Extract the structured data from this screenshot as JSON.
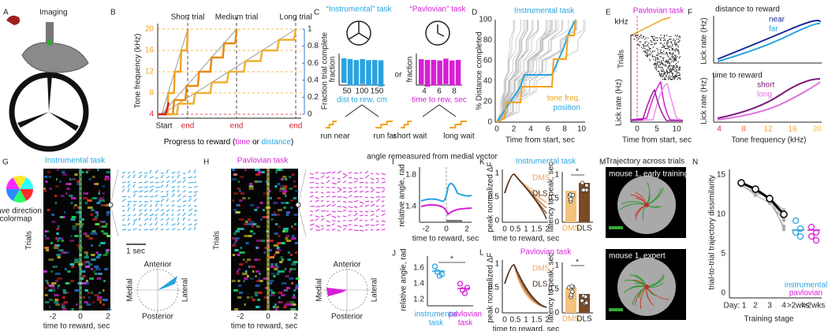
{
  "A": {
    "label": "A",
    "imaging": "Imaging"
  },
  "B": {
    "label": "B",
    "ylabel": "Tone frequency (kHz)",
    "yticks": [
      "4",
      "8",
      "12",
      "16",
      "20"
    ],
    "y2label": "Fraction trial complete",
    "y2ticks": [
      "0",
      "0.2",
      "0.4",
      "0.6",
      "0.8",
      "1"
    ],
    "trials": [
      "Short trial",
      "Medium trial",
      "Long trial"
    ],
    "start": "Start",
    "ends": [
      "end",
      "end",
      "end"
    ],
    "xlabel": [
      "Progress to reward (",
      "time",
      " or ",
      "distance",
      ")"
    ]
  },
  "C": {
    "label": "C",
    "instrumental_title": "“Instrumental” task",
    "or": "or",
    "pavlovian_title": "“Pavlovian” task",
    "ylabel": [
      "fraction",
      "fraction"
    ],
    "inst_ticks": [
      "50",
      "100",
      "150"
    ],
    "inst_xlabel": "dist to rew, cm",
    "pav_ticks": [
      "4",
      "6",
      "8"
    ],
    "pav_xlabel": "time to rew, sec",
    "outcomes": [
      "run near",
      "run far",
      "short wait",
      "long wait"
    ]
  },
  "D": {
    "label": "D",
    "title": "Instrumental task",
    "ylabel": "% Distance completed",
    "yticks": [
      "0",
      "20",
      "40",
      "60",
      "80",
      "100"
    ],
    "xticks": [
      "0",
      "2",
      "4",
      "6",
      "8",
      "10"
    ],
    "xlabel": "Time from start, sec",
    "legend": [
      "tone freq.",
      "position"
    ]
  },
  "E": {
    "label": "E",
    "title": "Pavlovian task",
    "khz": "kHz",
    "trials": "Trials",
    "ylabel": "Lick rate (Hz)",
    "xticks": [
      "0",
      "5",
      "10"
    ],
    "xlabel": "Time from start, sec"
  },
  "F": {
    "label": "F",
    "top_title": "distance to reward",
    "top_legend": [
      "near",
      "far"
    ],
    "ylabel": [
      "Lick rate (Hz)",
      "Lick rate (Hz)"
    ],
    "bottom_title": "time to reward",
    "bottom_legend": [
      "short",
      "long"
    ],
    "xticks": [
      "4",
      "8",
      "12",
      "16",
      "20"
    ],
    "xlabel": "Tone frequency (kHz)"
  },
  "G": {
    "label": "G",
    "colormap": [
      "Wave direction",
      "colormap"
    ],
    "title": "Instrumental task",
    "trials": "Trials",
    "xticks": [
      "-2",
      "0",
      "2"
    ],
    "xlabel": "time to reward, sec",
    "scale": "1 sec",
    "compass": [
      "Anterior",
      "Posterior",
      "Medial",
      "Lateral"
    ]
  },
  "H": {
    "label": "H",
    "title": "Pavlovian task",
    "trials": "Trials",
    "xticks": [
      "-2",
      "0",
      "2"
    ],
    "xlabel": "time to reward, sec",
    "compass": [
      "Anterior",
      "Posterior",
      "Medial",
      "Lateral"
    ]
  },
  "I": {
    "label": "I",
    "note": "angle remeasured from medial vector",
    "ylabel": "relative angle, rad",
    "yticks": [
      "1.8",
      "1.4"
    ],
    "xticks": [
      "-2",
      "0",
      "2"
    ],
    "xlabel": "time to reward, sec"
  },
  "J": {
    "label": "J",
    "ylabel": "relative angle, rad",
    "yticks": [
      "1.6",
      "1.4",
      "1.2"
    ],
    "star": "*",
    "groups": [
      [
        "instrumental",
        "task"
      ],
      [
        "pavlovian",
        "task"
      ]
    ]
  },
  "K": {
    "label": "K",
    "title": "Instrumental task",
    "ylabel": "peak normalized ΔF",
    "yticks": [
      "1",
      "0.5",
      "0"
    ],
    "xticks": [
      "0",
      "0.5",
      "1",
      "1.5",
      "2"
    ],
    "xlabel": "time to reward, sec",
    "legend": [
      "DMS",
      "DLS"
    ],
    "latency_label": "latency to peak, sec",
    "latency_ticks": [
      "1",
      "0.5",
      "0"
    ],
    "star": "*",
    "bars": [
      "DMS",
      "DLS"
    ]
  },
  "L": {
    "label": "L",
    "title": "Pavlovian task",
    "ylabel": "peak normalized ΔF",
    "yticks": [
      "1",
      "0.5",
      "0"
    ],
    "xticks": [
      "0",
      "0.5",
      "1",
      "1.5",
      "2"
    ],
    "xlabel": "time to reward, sec",
    "legend": [
      "DMS",
      "DLS"
    ],
    "latency_label": "latency to peak, sec",
    "latency_ticks": [
      "1",
      "0.5",
      "0"
    ],
    "star": "*",
    "bars": [
      "DMS",
      "DLS"
    ]
  },
  "M": {
    "label": "M",
    "title": "Trajectory across trials",
    "captions": [
      "mouse 1, early training",
      "mouse 1, expert"
    ]
  },
  "N": {
    "label": "N",
    "ylabel": "trial-to-trial trajectory dissimilarity",
    "yticks": [
      "0",
      "5",
      "10",
      "15"
    ],
    "xticks": [
      "Day: 1",
      "2",
      "3",
      "4",
      ">2wks",
      ">2wks"
    ],
    "xlabel": "Training stage",
    "legend": [
      "instrumental",
      "pavlovian"
    ]
  }
}
